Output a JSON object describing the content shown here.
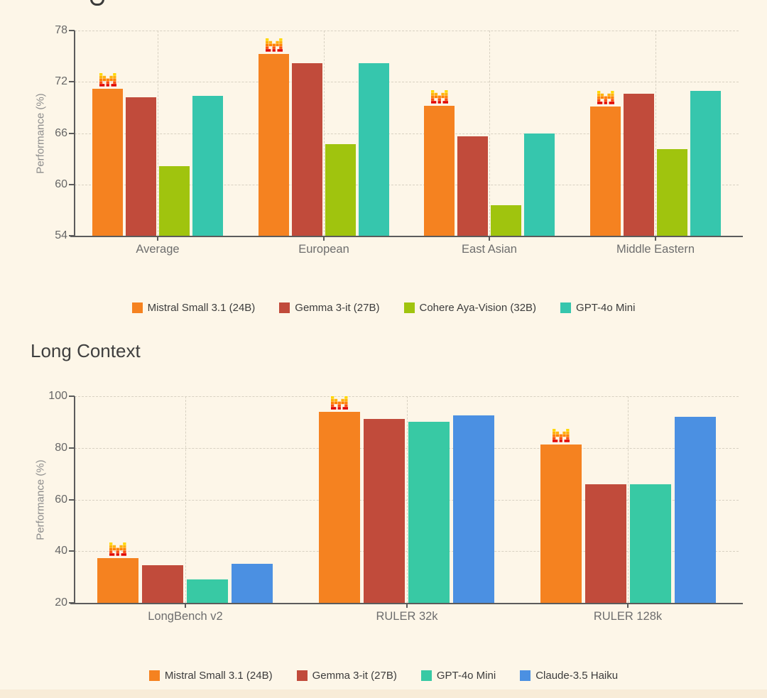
{
  "page": {
    "background": "#FDF6E8",
    "bottom_strip_color": "#F8ECD8"
  },
  "chart_data": [
    {
      "type": "bar",
      "title": "",
      "title_clipped": true,
      "ylabel": "Performance (%)",
      "ylim": [
        54,
        78
      ],
      "yticks": [
        78,
        72,
        66,
        60,
        54
      ],
      "grid": "dashed horizontal gridlines and dashed vertical gridlines at category centers",
      "legend_position": "bottom center",
      "categories": [
        "Average",
        "European",
        "East Asian",
        "Middle Eastern"
      ],
      "series": [
        {
          "name": "Mistral Small 3.1 (24B)",
          "color": "#F58220",
          "logo": "mistral-m-icon",
          "values": [
            71.2,
            75.3,
            69.2,
            69.1
          ]
        },
        {
          "name": "Gemma 3-it (27B)",
          "color": "#C14B3B",
          "values": [
            70.2,
            74.2,
            65.6,
            70.6
          ]
        },
        {
          "name": "Cohere Aya-Vision (32B)",
          "color": "#A0C40E",
          "values": [
            62.1,
            64.7,
            57.6,
            64.1
          ]
        },
        {
          "name": "GPT-4o Mini",
          "color": "#36C6AD",
          "values": [
            70.4,
            74.2,
            66.0,
            70.9
          ]
        }
      ]
    },
    {
      "type": "bar",
      "title": "Long Context",
      "title_clipped": false,
      "ylabel": "Performance (%)",
      "ylim": [
        20,
        100
      ],
      "yticks": [
        100,
        80,
        60,
        40,
        20
      ],
      "grid": "dashed horizontal gridlines and dashed vertical gridlines at category centers",
      "legend_position": "bottom center",
      "categories": [
        "LongBench v2",
        "RULER 32k",
        "RULER 128k"
      ],
      "series": [
        {
          "name": "Mistral Small 3.1 (24B)",
          "color": "#F58220",
          "logo": "mistral-m-icon",
          "values": [
            37.2,
            94.0,
            81.2
          ]
        },
        {
          "name": "Gemma 3-it (27B)",
          "color": "#C14B3B",
          "values": [
            34.6,
            91.1,
            66.0
          ]
        },
        {
          "name": "GPT-4o Mini",
          "color": "#38C9A4",
          "values": [
            29.2,
            90.2,
            65.8
          ]
        },
        {
          "name": "Claude-3.5 Haiku",
          "color": "#4B90E2",
          "values": [
            35.2,
            92.6,
            91.9
          ]
        }
      ]
    }
  ],
  "logo_colors": [
    "#FFD800",
    "#FFB20D",
    "#FF8205",
    "#FA500F",
    "#E10500"
  ]
}
